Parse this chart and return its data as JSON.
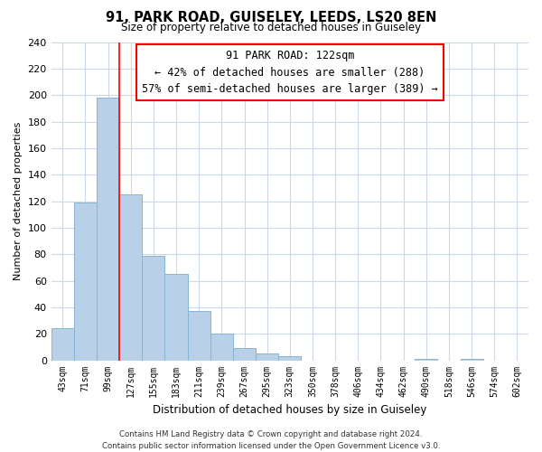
{
  "title1": "91, PARK ROAD, GUISELEY, LEEDS, LS20 8EN",
  "title2": "Size of property relative to detached houses in Guiseley",
  "xlabel": "Distribution of detached houses by size in Guiseley",
  "ylabel": "Number of detached properties",
  "bar_color": "#b8d0e8",
  "bar_edge_color": "#8ab4d4",
  "bin_labels": [
    "43sqm",
    "71sqm",
    "99sqm",
    "127sqm",
    "155sqm",
    "183sqm",
    "211sqm",
    "239sqm",
    "267sqm",
    "295sqm",
    "323sqm",
    "350sqm",
    "378sqm",
    "406sqm",
    "434sqm",
    "462sqm",
    "490sqm",
    "518sqm",
    "546sqm",
    "574sqm",
    "602sqm"
  ],
  "bar_heights": [
    24,
    119,
    198,
    125,
    79,
    65,
    37,
    20,
    9,
    5,
    3,
    0,
    0,
    0,
    0,
    0,
    1,
    0,
    1,
    0,
    0
  ],
  "ylim": [
    0,
    240
  ],
  "yticks": [
    0,
    20,
    40,
    60,
    80,
    100,
    120,
    140,
    160,
    180,
    200,
    220,
    240
  ],
  "red_line_x": 2.5,
  "annotation_title": "91 PARK ROAD: 122sqm",
  "annotation_line1": "← 42% of detached houses are smaller (288)",
  "annotation_line2": "57% of semi-detached houses are larger (389) →",
  "footer1": "Contains HM Land Registry data © Crown copyright and database right 2024.",
  "footer2": "Contains public sector information licensed under the Open Government Licence v3.0.",
  "background_color": "#ffffff",
  "grid_color": "#ccd8ea"
}
